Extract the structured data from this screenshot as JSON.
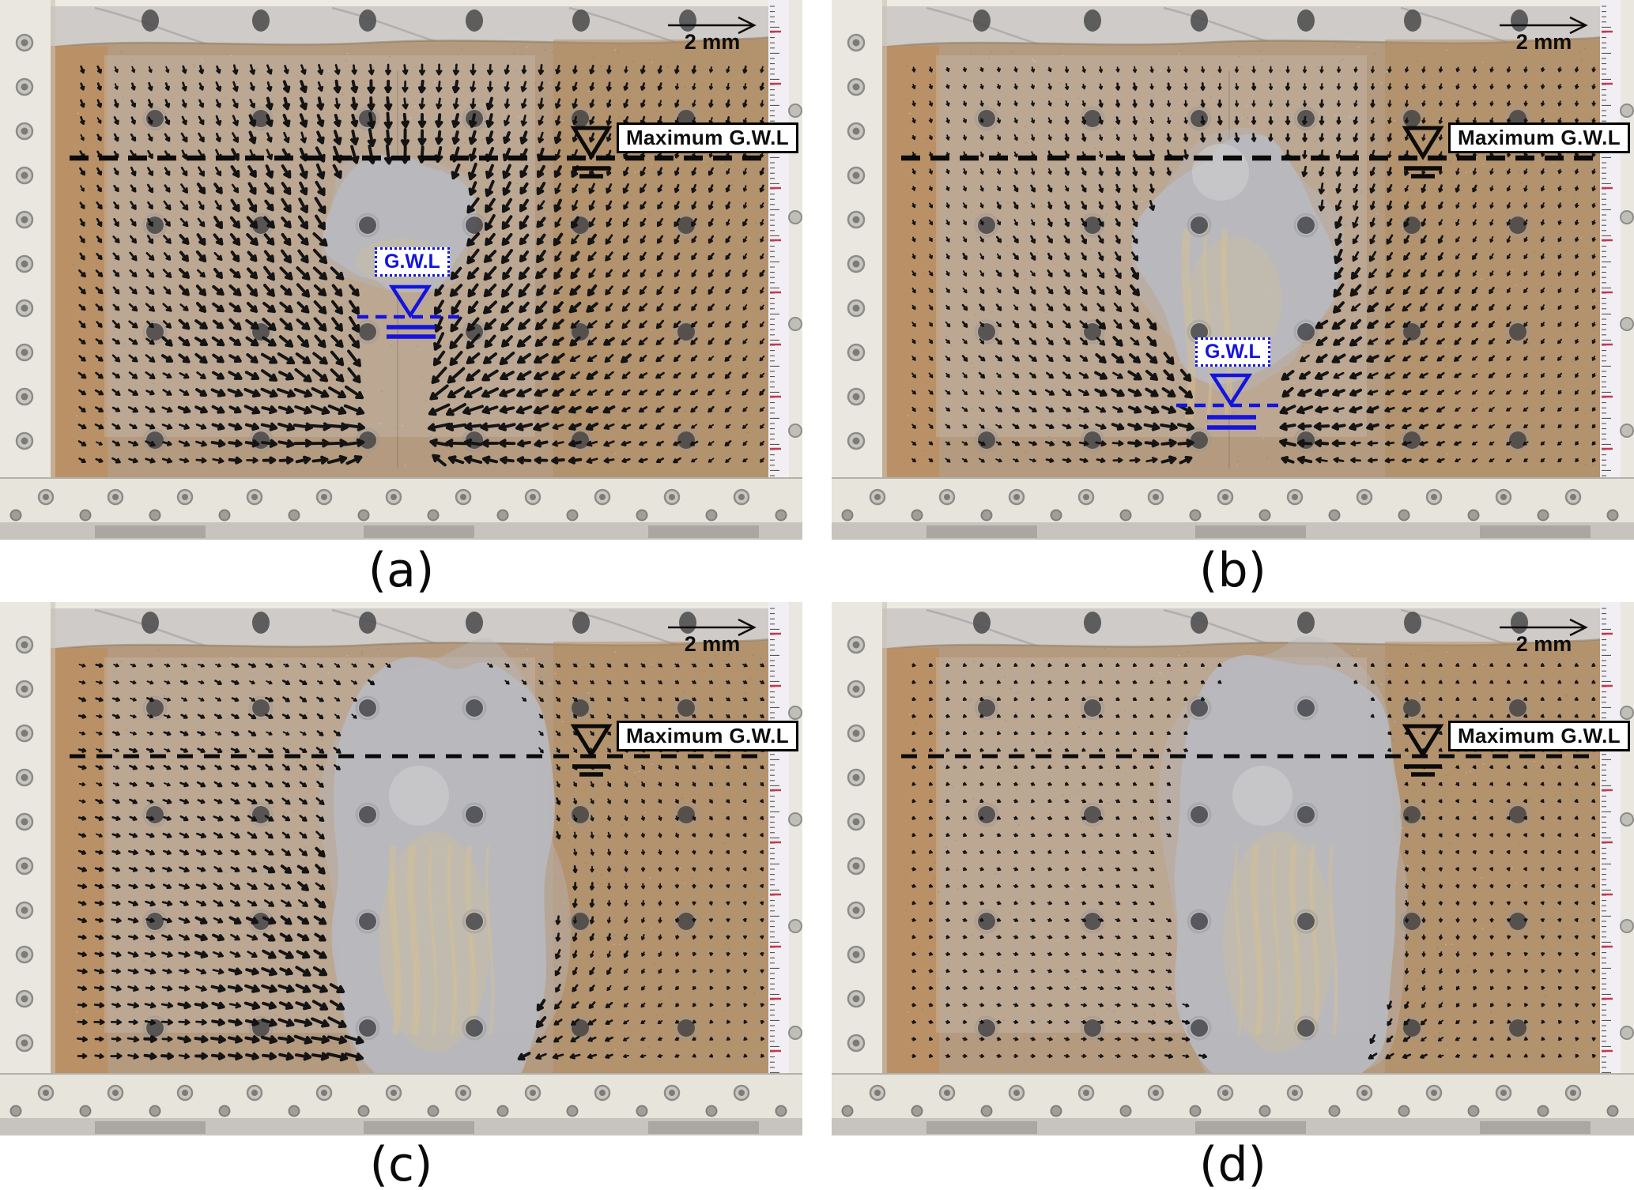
{
  "panels": [
    {
      "caption": "(a)",
      "scale_label": "2 mm",
      "max_gwl_label": "Maximum G.W.L",
      "gwl_label": "G.W.L"
    },
    {
      "caption": "(b)",
      "scale_label": "2 mm",
      "max_gwl_label": "Maximum G.W.L",
      "gwl_label": "G.W.L"
    },
    {
      "caption": "(c)",
      "scale_label": "2 mm",
      "max_gwl_label": "Maximum G.W.L"
    },
    {
      "caption": "(d)",
      "scale_label": "2 mm",
      "max_gwl_label": "Maximum G.W.L"
    }
  ],
  "colors": {
    "annotation_blue": "#1414dd",
    "annotation_black": "#0b0b0b",
    "arrow_black": "#141414",
    "sand": "#b49a7e",
    "sand_left_strip": "#bc8e60",
    "sand_right": "#b28a5c",
    "cavity_grey": "#b8bac0",
    "cavity_patch_yellow": "#d7c18b",
    "frame_white": "#e9e7e0",
    "marble_grey": "#cecbc8",
    "label_bg": "#ffffff"
  }
}
